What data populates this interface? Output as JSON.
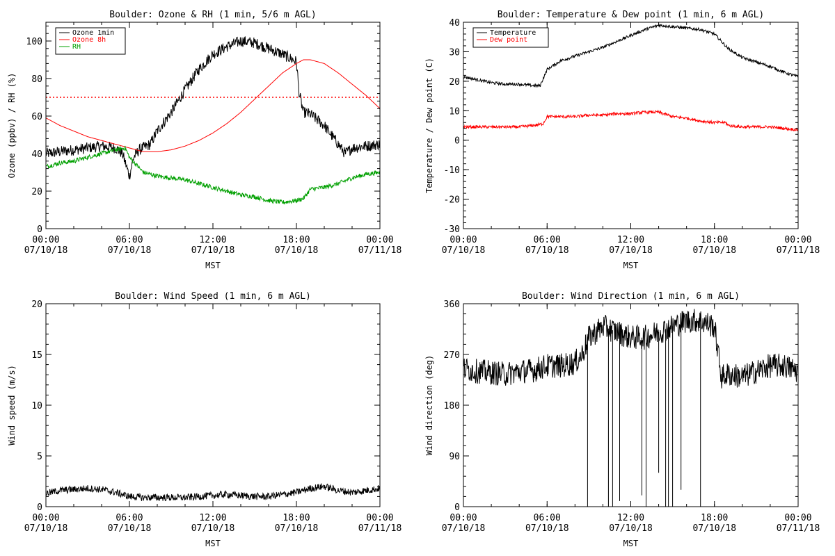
{
  "chart_data": [
    {
      "type": "line",
      "title": "Boulder: Ozone & RH (1 min, 5/6 m AGL)",
      "xlabel": "MST",
      "ylabel": "Ozone (ppbv) / RH (%)",
      "ylim": [
        0,
        110
      ],
      "yticks": [
        0,
        20,
        40,
        60,
        80,
        100
      ],
      "xlim": [
        0,
        24
      ],
      "xticks": [
        0,
        6,
        12,
        18,
        24
      ],
      "xtick_labels": [
        [
          "00:00",
          "07/10/18"
        ],
        [
          "06:00",
          "07/10/18"
        ],
        [
          "12:00",
          "07/10/18"
        ],
        [
          "18:00",
          "07/10/18"
        ],
        [
          "00:00",
          "07/11/18"
        ]
      ],
      "legend": "top-left",
      "hlines": [
        {
          "y": 70,
          "color": "#ff0000",
          "style": "dotted"
        }
      ],
      "series": [
        {
          "name": "Ozone 1min",
          "color": "#000000",
          "noise": 3,
          "x": [
            0,
            1,
            2,
            3,
            4,
            5,
            5.5,
            6,
            6.3,
            6.7,
            7.5,
            8,
            9,
            10,
            11,
            12,
            13,
            14,
            15,
            16,
            17,
            18,
            18.2,
            18.5,
            19,
            20,
            21,
            21.5,
            22,
            23,
            24
          ],
          "y": [
            40,
            41,
            42,
            43,
            44,
            43,
            40,
            28,
            38,
            42,
            45,
            52,
            62,
            74,
            85,
            93,
            97,
            100,
            99,
            96,
            93,
            89,
            72,
            62,
            61,
            55,
            45,
            40,
            43,
            44,
            45
          ]
        },
        {
          "name": "Ozone 8h",
          "color": "#ff0000",
          "noise": 0,
          "x": [
            0,
            1,
            2,
            3,
            4,
            5,
            6,
            7,
            8,
            9,
            10,
            11,
            12,
            13,
            14,
            15,
            16,
            17,
            18,
            18.5,
            19,
            20,
            21,
            22,
            23,
            24
          ],
          "y": [
            59,
            55,
            52,
            49,
            47,
            45,
            43,
            41,
            41,
            42,
            44,
            47,
            51,
            56,
            62,
            69,
            76,
            83,
            88,
            90,
            90,
            88,
            83,
            77,
            71,
            64
          ]
        },
        {
          "name": "RH",
          "color": "#00a000",
          "noise": 1.2,
          "x": [
            0,
            1,
            2,
            3,
            4,
            5,
            5.7,
            6,
            6.5,
            7,
            8,
            9,
            10,
            11,
            12,
            13,
            14,
            15,
            16,
            17,
            18,
            18.5,
            19,
            20,
            21,
            22,
            23,
            24
          ],
          "y": [
            33,
            35,
            36,
            38,
            40,
            42,
            43,
            38,
            34,
            30,
            28,
            27,
            26,
            24,
            22,
            20,
            18,
            17,
            15,
            14,
            15,
            16,
            21,
            22,
            24,
            27,
            29,
            30
          ]
        }
      ]
    },
    {
      "type": "line",
      "title": "Boulder: Temperature & Dew point (1 min, 6 m AGL)",
      "xlabel": "MST",
      "ylabel": "Temperature / Dew point (C)",
      "ylim": [
        -30,
        40
      ],
      "yticks": [
        -30,
        -20,
        -10,
        0,
        10,
        20,
        30,
        40
      ],
      "xlim": [
        0,
        24
      ],
      "xticks": [
        0,
        6,
        12,
        18,
        24
      ],
      "xtick_labels": [
        [
          "00:00",
          "07/10/18"
        ],
        [
          "06:00",
          "07/10/18"
        ],
        [
          "12:00",
          "07/10/18"
        ],
        [
          "18:00",
          "07/10/18"
        ],
        [
          "00:00",
          "07/11/18"
        ]
      ],
      "legend": "top-left",
      "series": [
        {
          "name": "Temperature",
          "color": "#000000",
          "noise": 0.5,
          "x": [
            0,
            1,
            2,
            3,
            4,
            5,
            5.5,
            6,
            7,
            8,
            9,
            10,
            11,
            12,
            13,
            14,
            15,
            16,
            17,
            18,
            19,
            20,
            21,
            22,
            23,
            24
          ],
          "y": [
            21.5,
            20.5,
            19.5,
            19,
            19,
            18.5,
            18.5,
            24,
            27,
            28.5,
            30,
            31.5,
            33.5,
            35.5,
            37.5,
            39,
            38.5,
            38,
            37.5,
            36,
            31,
            28,
            26.5,
            25,
            23,
            21.5
          ]
        },
        {
          "name": "Dew point",
          "color": "#ff0000",
          "noise": 0.5,
          "x": [
            0,
            1,
            2,
            3,
            4,
            5,
            5.7,
            6,
            7,
            8,
            9,
            10,
            11,
            12,
            13,
            14,
            15,
            16,
            17,
            18,
            18.8,
            19,
            20,
            21,
            22,
            23,
            24
          ],
          "y": [
            4.5,
            4.5,
            4.5,
            4.5,
            4.5,
            5,
            5.5,
            8,
            8,
            8,
            8.5,
            8.5,
            9,
            9,
            9.5,
            9.5,
            8,
            7.5,
            6.5,
            6,
            6,
            5,
            4.5,
            4.5,
            4.5,
            4,
            3.5
          ]
        }
      ]
    },
    {
      "type": "line",
      "title": "Boulder: Wind Speed (1 min, 6 m AGL)",
      "xlabel": "MST",
      "ylabel": "Wind speed (m/s)",
      "ylim": [
        0,
        20
      ],
      "yticks": [
        0,
        5,
        10,
        15,
        20
      ],
      "xlim": [
        0,
        24
      ],
      "xticks": [
        0,
        6,
        12,
        18,
        24
      ],
      "xtick_labels": [
        [
          "00:00",
          "07/10/18"
        ],
        [
          "06:00",
          "07/10/18"
        ],
        [
          "12:00",
          "07/10/18"
        ],
        [
          "18:00",
          "07/10/18"
        ],
        [
          "00:00",
          "07/11/18"
        ]
      ],
      "series": [
        {
          "color": "#000000",
          "noise": 0.35,
          "x": [
            0,
            1,
            2,
            3,
            4,
            5,
            6,
            7,
            8,
            9,
            10,
            11,
            12,
            13,
            14,
            15,
            16,
            17,
            18,
            19,
            20,
            21,
            22,
            23,
            24
          ],
          "y": [
            1.3,
            1.6,
            1.7,
            1.8,
            1.7,
            1.4,
            1.0,
            0.9,
            0.9,
            0.9,
            0.9,
            1.0,
            1.1,
            1.2,
            1.1,
            1.0,
            1.0,
            1.2,
            1.4,
            1.8,
            2.0,
            1.6,
            1.4,
            1.6,
            1.8
          ]
        }
      ]
    },
    {
      "type": "line",
      "title": "Boulder: Wind Direction (1 min, 6 m AGL)",
      "xlabel": "MST",
      "ylabel": "Wind direction (deg)",
      "ylim": [
        0,
        360
      ],
      "yticks": [
        0,
        90,
        180,
        270,
        360
      ],
      "xlim": [
        0,
        24
      ],
      "xticks": [
        0,
        6,
        12,
        18,
        24
      ],
      "xtick_labels": [
        [
          "00:00",
          "07/10/18"
        ],
        [
          "06:00",
          "07/10/18"
        ],
        [
          "12:00",
          "07/10/18"
        ],
        [
          "18:00",
          "07/10/18"
        ],
        [
          "00:00",
          "07/11/18"
        ]
      ],
      "series": [
        {
          "color": "#000000",
          "noise": 22,
          "clip": [
            0,
            360
          ],
          "x": [
            0,
            1,
            2,
            3,
            4,
            5,
            6,
            7,
            8,
            8.5,
            9,
            10,
            11,
            12,
            13,
            14,
            15,
            16,
            17,
            18,
            18.5,
            19,
            20,
            21,
            22,
            23,
            24
          ],
          "y": [
            245,
            240,
            238,
            235,
            240,
            242,
            250,
            250,
            255,
            270,
            300,
            320,
            310,
            300,
            300,
            310,
            320,
            330,
            330,
            320,
            230,
            235,
            230,
            240,
            250,
            250,
            240
          ]
        },
        {
          "color": "#000000",
          "noise": 0,
          "spikes": true,
          "x": [
            8.9,
            10.4,
            10.7,
            11.2,
            12.8,
            13.1,
            14.0,
            14.5,
            14.7,
            15.0,
            15.6,
            17.0
          ],
          "y": [
            0,
            0,
            0,
            10,
            20,
            0,
            60,
            0,
            0,
            0,
            30,
            0
          ]
        }
      ]
    }
  ]
}
